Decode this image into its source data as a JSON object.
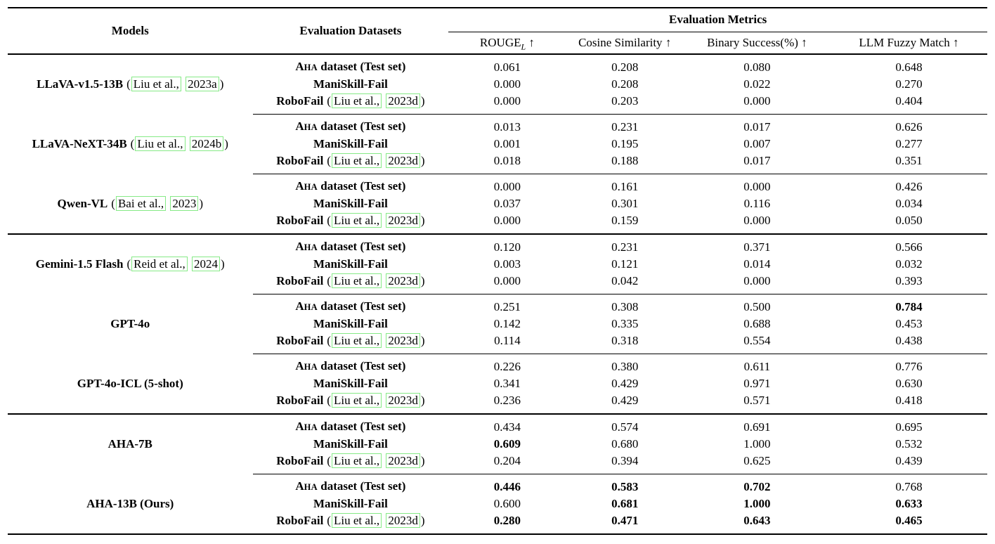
{
  "colors": {
    "link_border": "#86ea86"
  },
  "table": {
    "header": {
      "models": "Models",
      "datasets": "Evaluation Datasets",
      "metrics_group": "Evaluation Metrics",
      "metric_columns": [
        {
          "id": "rouge-l",
          "base": "ROUGE",
          "sub": "L",
          "arrow": "↑"
        },
        {
          "id": "cosine-similarity",
          "base": "Cosine Similarity",
          "sub": "",
          "arrow": "↑"
        },
        {
          "id": "binary-success",
          "base": "Binary Success(%)",
          "sub": "",
          "arrow": "↑"
        },
        {
          "id": "llm-fuzzy-match",
          "base": "LLM Fuzzy Match",
          "sub": "",
          "arrow": "↑"
        }
      ]
    },
    "dataset_labels": {
      "aha": {
        "cap": "A",
        "small": "HA",
        "rest": " dataset (Test set)"
      },
      "maniskill": {
        "label": "ManiSkill-Fail"
      },
      "robofail": {
        "label": "RoboFail",
        "citation": {
          "authors": "Liu et al.,",
          "year": "2023d"
        }
      }
    },
    "groups": [
      {
        "model": "LLaVA-v1.5-13B",
        "citation": {
          "authors": "Liu et al.,",
          "year": "2023a"
        },
        "separator_after": "thin",
        "rows": [
          {
            "dataset": "aha",
            "values": [
              "0.061",
              "0.208",
              "0.080",
              "0.648"
            ],
            "bold": [
              0,
              0,
              0,
              0
            ]
          },
          {
            "dataset": "maniskill",
            "values": [
              "0.000",
              "0.208",
              "0.022",
              "0.270"
            ],
            "bold": [
              0,
              0,
              0,
              0
            ]
          },
          {
            "dataset": "robofail",
            "values": [
              "0.000",
              "0.203",
              "0.000",
              "0.404"
            ],
            "bold": [
              0,
              0,
              0,
              0
            ]
          }
        ]
      },
      {
        "model": "LLaVA-NeXT-34B",
        "citation": {
          "authors": "Liu et al.,",
          "year": "2024b"
        },
        "separator_after": "thin",
        "rows": [
          {
            "dataset": "aha",
            "values": [
              "0.013",
              "0.231",
              "0.017",
              "0.626"
            ],
            "bold": [
              0,
              0,
              0,
              0
            ]
          },
          {
            "dataset": "maniskill",
            "values": [
              "0.001",
              "0.195",
              "0.007",
              "0.277"
            ],
            "bold": [
              0,
              0,
              0,
              0
            ]
          },
          {
            "dataset": "robofail",
            "values": [
              "0.018",
              "0.188",
              "0.017",
              "0.351"
            ],
            "bold": [
              0,
              0,
              0,
              0
            ]
          }
        ]
      },
      {
        "model": "Qwen-VL",
        "citation": {
          "authors": "Bai et al.,",
          "year": "2023"
        },
        "separator_after": "thick",
        "rows": [
          {
            "dataset": "aha",
            "values": [
              "0.000",
              "0.161",
              "0.000",
              "0.426"
            ],
            "bold": [
              0,
              0,
              0,
              0
            ]
          },
          {
            "dataset": "maniskill",
            "values": [
              "0.037",
              "0.301",
              "0.116",
              "0.034"
            ],
            "bold": [
              0,
              0,
              0,
              0
            ]
          },
          {
            "dataset": "robofail",
            "values": [
              "0.000",
              "0.159",
              "0.000",
              "0.050"
            ],
            "bold": [
              0,
              0,
              0,
              0
            ]
          }
        ]
      },
      {
        "model": "Gemini-1.5 Flash",
        "citation": {
          "authors": "Reid et al.,",
          "year": "2024"
        },
        "separator_after": "thin",
        "rows": [
          {
            "dataset": "aha",
            "values": [
              "0.120",
              "0.231",
              "0.371",
              "0.566"
            ],
            "bold": [
              0,
              0,
              0,
              0
            ]
          },
          {
            "dataset": "maniskill",
            "values": [
              "0.003",
              "0.121",
              "0.014",
              "0.032"
            ],
            "bold": [
              0,
              0,
              0,
              0
            ]
          },
          {
            "dataset": "robofail",
            "values": [
              "0.000",
              "0.042",
              "0.000",
              "0.393"
            ],
            "bold": [
              0,
              0,
              0,
              0
            ]
          }
        ]
      },
      {
        "model": "GPT-4o",
        "citation": null,
        "separator_after": "thin",
        "rows": [
          {
            "dataset": "aha",
            "values": [
              "0.251",
              "0.308",
              "0.500",
              "0.784"
            ],
            "bold": [
              0,
              0,
              0,
              1
            ]
          },
          {
            "dataset": "maniskill",
            "values": [
              "0.142",
              "0.335",
              "0.688",
              "0.453"
            ],
            "bold": [
              0,
              0,
              0,
              0
            ]
          },
          {
            "dataset": "robofail",
            "values": [
              "0.114",
              "0.318",
              "0.554",
              "0.438"
            ],
            "bold": [
              0,
              0,
              0,
              0
            ]
          }
        ]
      },
      {
        "model": "GPT-4o-ICL (5-shot)",
        "citation": null,
        "separator_after": "thick",
        "rows": [
          {
            "dataset": "aha",
            "values": [
              "0.226",
              "0.380",
              "0.611",
              "0.776"
            ],
            "bold": [
              0,
              0,
              0,
              0
            ]
          },
          {
            "dataset": "maniskill",
            "values": [
              "0.341",
              "0.429",
              "0.971",
              "0.630"
            ],
            "bold": [
              0,
              0,
              0,
              0
            ]
          },
          {
            "dataset": "robofail",
            "values": [
              "0.236",
              "0.429",
              "0.571",
              "0.418"
            ],
            "bold": [
              0,
              0,
              0,
              0
            ]
          }
        ]
      },
      {
        "model": "AHA-7B",
        "citation": null,
        "separator_after": "thin",
        "rows": [
          {
            "dataset": "aha",
            "values": [
              "0.434",
              "0.574",
              "0.691",
              "0.695"
            ],
            "bold": [
              0,
              0,
              0,
              0
            ]
          },
          {
            "dataset": "maniskill",
            "values": [
              "0.609",
              "0.680",
              "1.000",
              "0.532"
            ],
            "bold": [
              1,
              0,
              0,
              0
            ]
          },
          {
            "dataset": "robofail",
            "values": [
              "0.204",
              "0.394",
              "0.625",
              "0.439"
            ],
            "bold": [
              0,
              0,
              0,
              0
            ]
          }
        ]
      },
      {
        "model": "AHA-13B (Ours)",
        "citation": null,
        "separator_after": "thick",
        "rows": [
          {
            "dataset": "aha",
            "values": [
              "0.446",
              "0.583",
              "0.702",
              "0.768"
            ],
            "bold": [
              1,
              1,
              1,
              0
            ]
          },
          {
            "dataset": "maniskill",
            "values": [
              "0.600",
              "0.681",
              "1.000",
              "0.633"
            ],
            "bold": [
              0,
              1,
              1,
              1
            ]
          },
          {
            "dataset": "robofail",
            "values": [
              "0.280",
              "0.471",
              "0.643",
              "0.465"
            ],
            "bold": [
              1,
              1,
              1,
              1
            ]
          }
        ]
      }
    ]
  }
}
